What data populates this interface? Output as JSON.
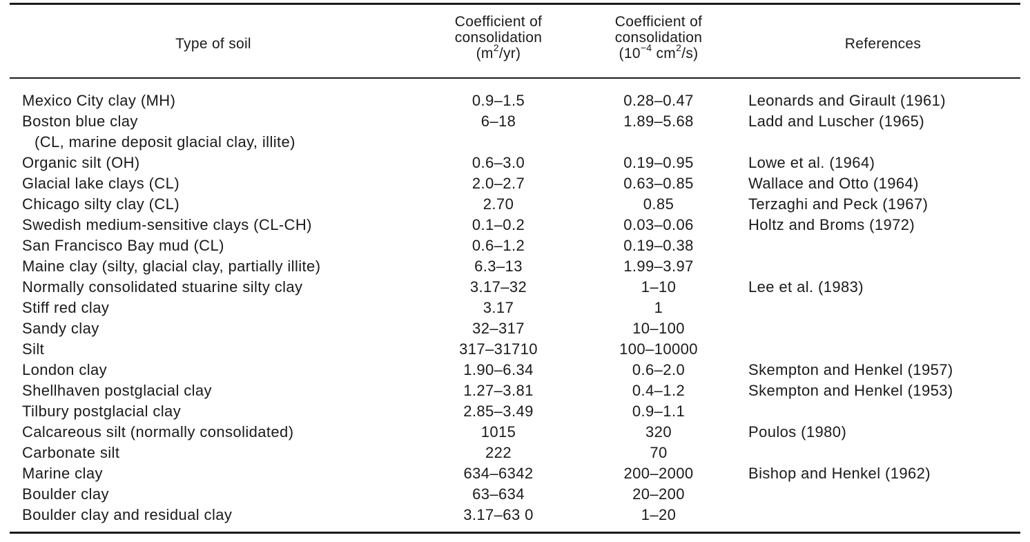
{
  "table": {
    "headers": {
      "soil": "Type of soil",
      "coef_m2yr": {
        "line1": "Coefficient of",
        "line2": "consolidation",
        "unit_pre": "(m",
        "unit_sup": "2",
        "unit_post": "/yr)"
      },
      "coef_cm2s": {
        "line1": "Coefficient of",
        "line2": "consolidation",
        "unit_pre": "(10",
        "unit_sup1": "−4",
        "unit_mid": " cm",
        "unit_sup2": "2",
        "unit_post": "/s)"
      },
      "references": "References"
    },
    "rows": [
      {
        "soil": "Mexico City clay (MH)",
        "soil_sub": "",
        "c1": "0.9–1.5",
        "c2": "0.28–0.47",
        "ref": "Leonards and Girault (1961)"
      },
      {
        "soil": "Boston blue clay",
        "soil_sub": "(CL, marine deposit glacial clay, illite)",
        "c1": "6–18",
        "c2": "1.89–5.68",
        "ref": "Ladd and Luscher (1965)"
      },
      {
        "soil": "Organic silt (OH)",
        "soil_sub": "",
        "c1": "0.6–3.0",
        "c2": "0.19–0.95",
        "ref": "Lowe et al. (1964)"
      },
      {
        "soil": "Glacial lake clays (CL)",
        "soil_sub": "",
        "c1": "2.0–2.7",
        "c2": "0.63–0.85",
        "ref": "Wallace and Otto (1964)"
      },
      {
        "soil": "Chicago silty clay (CL)",
        "soil_sub": "",
        "c1": "2.70",
        "c2": "0.85",
        "ref": "Terzaghi and Peck (1967)"
      },
      {
        "soil": "Swedish medium-sensitive clays (CL-CH)",
        "soil_sub": "",
        "c1": "0.1–0.2",
        "c2": "0.03–0.06",
        "ref": "Holtz and Broms (1972)"
      },
      {
        "soil": "San Francisco Bay mud (CL)",
        "soil_sub": "",
        "c1": "0.6–1.2",
        "c2": "0.19–0.38",
        "ref": ""
      },
      {
        "soil": "Maine clay (silty, glacial clay, partially illite)",
        "soil_sub": "",
        "c1": "6.3–13",
        "c2": "1.99–3.97",
        "ref": ""
      },
      {
        "soil": "Normally consolidated stuarine silty clay",
        "soil_sub": "",
        "c1": "3.17–32",
        "c2": "1–10",
        "ref": "Lee et al. (1983)"
      },
      {
        "soil": "Stiff red clay",
        "soil_sub": "",
        "c1": "3.17",
        "c2": "1",
        "ref": ""
      },
      {
        "soil": "Sandy clay",
        "soil_sub": "",
        "c1": "32–317",
        "c2": "10–100",
        "ref": ""
      },
      {
        "soil": "Silt",
        "soil_sub": "",
        "c1": "317–31710",
        "c2": "100–10000",
        "ref": ""
      },
      {
        "soil": "London clay",
        "soil_sub": "",
        "c1": "1.90–6.34",
        "c2": "0.6–2.0",
        "ref": "Skempton and Henkel (1957)"
      },
      {
        "soil": "Shellhaven postglacial clay",
        "soil_sub": "",
        "c1": "1.27–3.81",
        "c2": "0.4–1.2",
        "ref": "Skempton and Henkel (1953)"
      },
      {
        "soil": "Tilbury postglacial clay",
        "soil_sub": "",
        "c1": "2.85–3.49",
        "c2": "0.9–1.1",
        "ref": ""
      },
      {
        "soil": "Calcareous silt (normally consolidated)",
        "soil_sub": "",
        "c1": "1015",
        "c2": "320",
        "ref": "Poulos (1980)"
      },
      {
        "soil": "Carbonate silt",
        "soil_sub": "",
        "c1": "222",
        "c2": "70",
        "ref": ""
      },
      {
        "soil": "Marine clay",
        "soil_sub": "",
        "c1": "634–6342",
        "c2": "200–2000",
        "ref": "Bishop and Henkel (1962)"
      },
      {
        "soil": "Boulder clay",
        "soil_sub": "",
        "c1": "63–634",
        "c2": "20–200",
        "ref": ""
      },
      {
        "soil": "Boulder clay and residual clay",
        "soil_sub": "",
        "c1": "3.17–63 0",
        "c2": "1–20",
        "ref": ""
      }
    ]
  }
}
